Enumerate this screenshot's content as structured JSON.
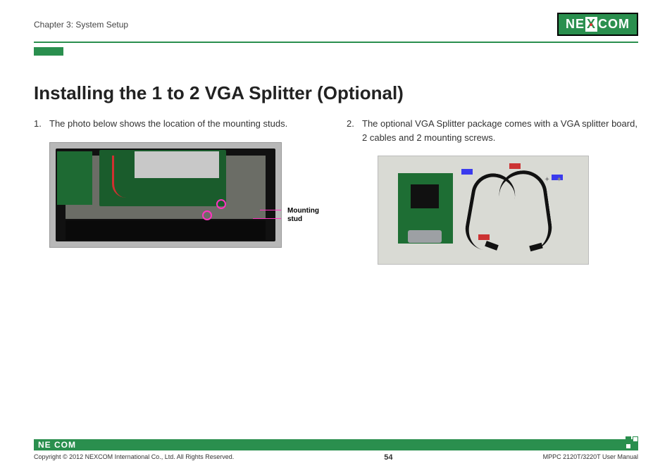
{
  "header": {
    "chapter": "Chapter 3: System Setup",
    "brand_ne": "NE",
    "brand_x": "X",
    "brand_com": "COM"
  },
  "accent_color": "#2a8f4e",
  "title": "Installing the 1 to 2 VGA Splitter (Optional)",
  "steps": {
    "s1_num": "1.",
    "s1_text": "The photo below shows the location of the mounting studs.",
    "s2_num": "2.",
    "s2_text": "The optional VGA Splitter package comes with a VGA splitter board, 2 cables and 2 mounting screws."
  },
  "callout": {
    "label_line1": "Mounting",
    "label_line2": "stud"
  },
  "footer": {
    "logo": "NE COM",
    "copyright": "Copyright © 2012 NEXCOM International Co., Ltd. All Rights Reserved.",
    "page": "54",
    "manual": "MPPC 2120T/3220T User Manual"
  }
}
